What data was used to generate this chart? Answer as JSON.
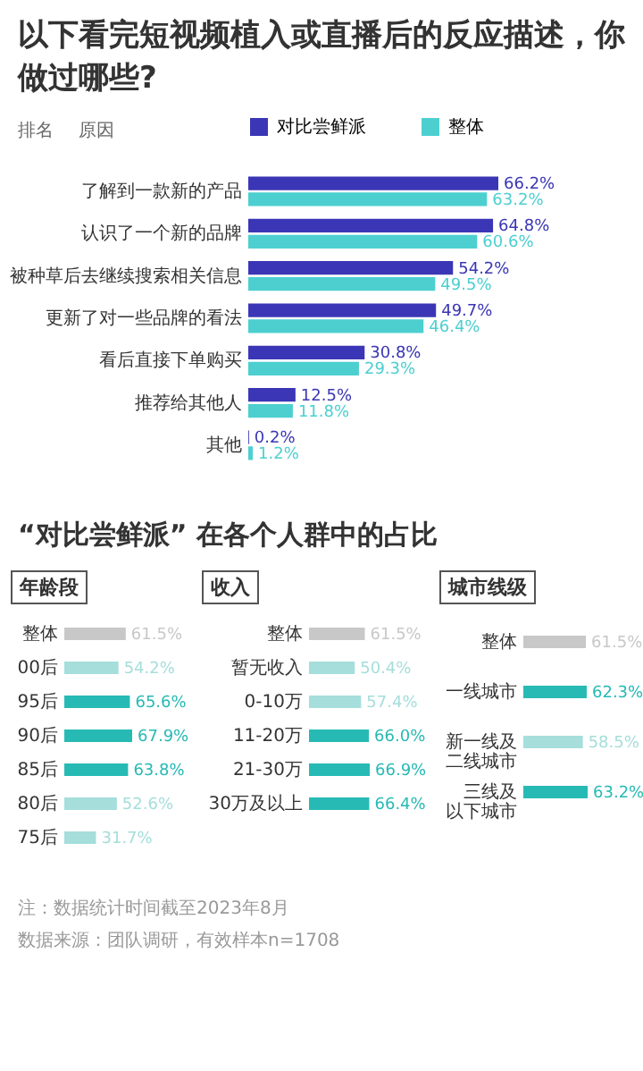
{
  "chart_data": [
    {
      "type": "bar",
      "orientation": "horizontal",
      "title": "以下看完短视频植入或直播后的反应描述，你做过哪些?",
      "annotations": [
        "排名",
        "原因"
      ],
      "categories": [
        "了解到一款新的产品",
        "认识了一个新的品牌",
        "被种草后去继续搜索相关信息",
        "更新了对一些品牌的看法",
        "看后直接下单购买",
        "推荐给其他人",
        "其他"
      ],
      "series": [
        {
          "name": "对比尝鲜派",
          "color": "#3a36b5",
          "values": [
            66.2,
            64.8,
            54.2,
            49.7,
            30.8,
            12.5,
            0.2
          ],
          "value_labels": [
            "66.2%",
            "64.8%",
            "54.2%",
            "49.7%",
            "30.8%",
            "12.5%",
            "0.2%"
          ]
        },
        {
          "name": "整体",
          "color": "#4dcfd0",
          "values": [
            63.2,
            60.6,
            49.5,
            46.4,
            29.3,
            11.8,
            1.2
          ],
          "value_labels": [
            "63.2%",
            "60.6%",
            "49.5%",
            "46.4%",
            "29.3%",
            "11.8%",
            "1.2%"
          ]
        }
      ],
      "legend": "top"
    },
    {
      "type": "bar",
      "orientation": "horizontal",
      "title": "“对比尝鲜派” 在各个人群中的占比",
      "subtitle": "年龄段",
      "annotations": [
        "注：数据统计时间截至2023年8月"
      ],
      "categories": [
        "整体",
        "00后",
        "95后",
        "90后",
        "85后",
        "80后",
        "75后"
      ],
      "values": [
        61.5,
        54.2,
        65.6,
        67.9,
        63.8,
        52.6,
        31.7
      ],
      "colors": [
        "#c8c8c8",
        "#a5dedb",
        "#27bab5",
        "#27bab5",
        "#27bab5",
        "#a5dedb",
        "#a5dedb"
      ],
      "value_labels": [
        "61.5%",
        "54.2%",
        "65.6%",
        "67.9%",
        "63.8%",
        "52.6%",
        "31.7%"
      ]
    },
    {
      "type": "bar",
      "orientation": "horizontal",
      "title": "收入",
      "categories": [
        "整体",
        "暂无收入",
        "0-10万",
        "11-20万",
        "21-30万",
        "30万及以上"
      ],
      "values": [
        61.5,
        50.4,
        57.4,
        66.0,
        66.9,
        66.4
      ],
      "colors": [
        "#c8c8c8",
        "#a5dedb",
        "#a5dedb",
        "#27bab5",
        "#27bab5",
        "#27bab5"
      ],
      "value_labels": [
        "61.5%",
        "50.4%",
        "57.4%",
        "66.0%",
        "66.9%",
        "66.4%"
      ]
    },
    {
      "type": "bar",
      "orientation": "horizontal",
      "title": "城市线级",
      "annotations": [
        "数据来源：团队调研，有效样本n=1708"
      ],
      "categories": [
        "整体",
        "一线城市",
        "新一线及二线城市",
        "三线及以下城市"
      ],
      "values": [
        61.5,
        62.3,
        58.5,
        63.2
      ],
      "colors": [
        "#c8c8c8",
        "#27bab5",
        "#a5dedb",
        "#27bab5"
      ],
      "value_labels": [
        "61.5%",
        "62.3%",
        "58.5%",
        "63.2%"
      ]
    }
  ]
}
